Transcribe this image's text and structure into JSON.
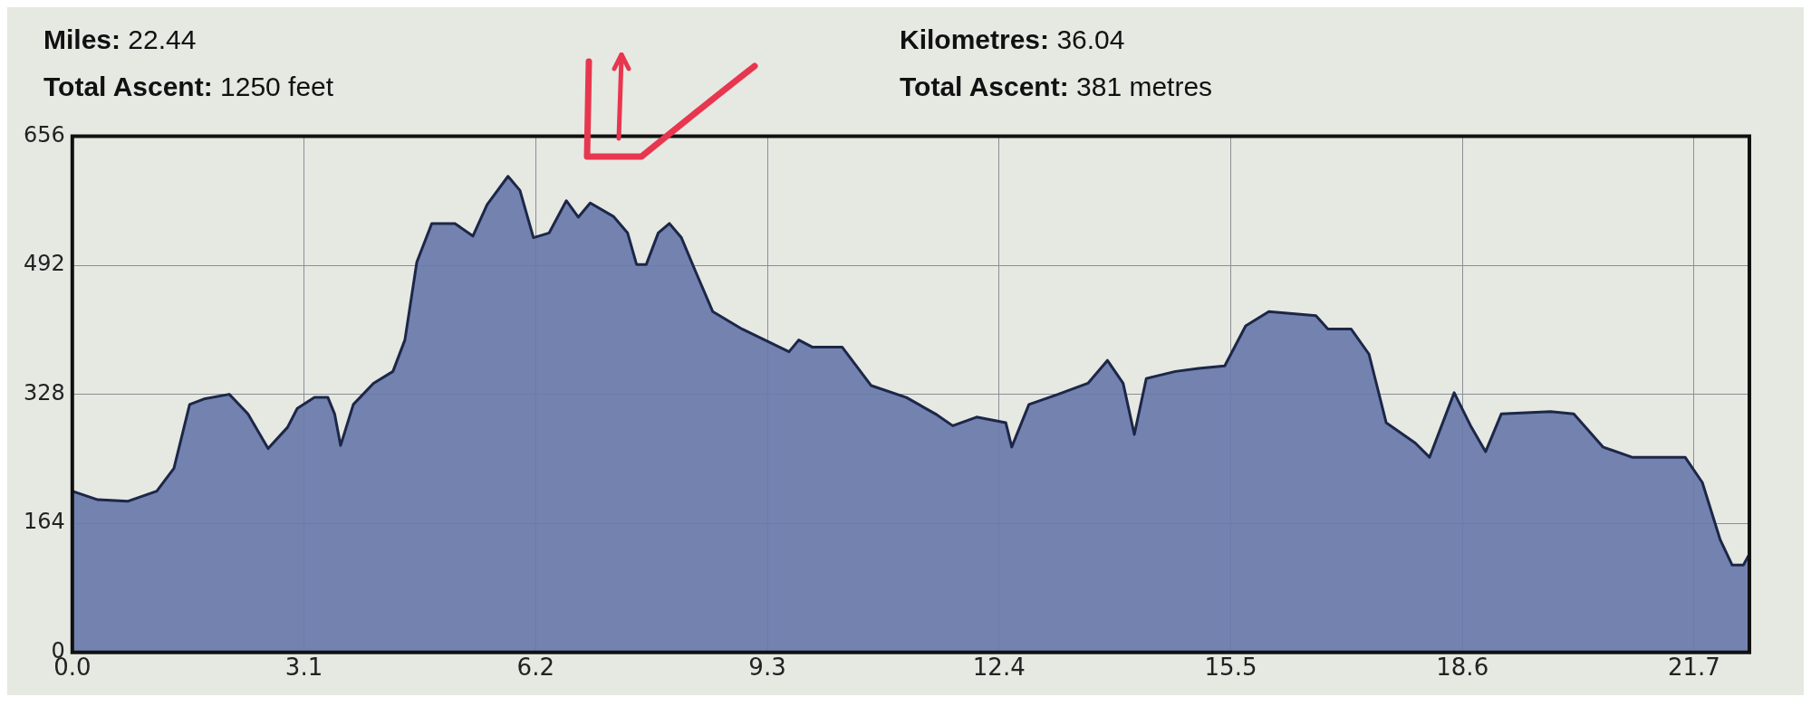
{
  "chart_data": {
    "type": "area",
    "annotations": [
      "Miles: 22.44",
      "Total Ascent: 1250 feet",
      "Kilometres: 36.04",
      "Total Ascent: 381 metres"
    ],
    "x": [
      0,
      0.34,
      0.74,
      1.13,
      1.36,
      1.57,
      1.76,
      2.1,
      2.35,
      2.62,
      2.88,
      3.01,
      3.24,
      3.42,
      3.51,
      3.59,
      3.76,
      4.03,
      4.29,
      4.45,
      4.61,
      4.81,
      5.12,
      5.36,
      5.55,
      5.83,
      5.99,
      6.17,
      6.38,
      6.61,
      6.77,
      6.93,
      7.24,
      7.43,
      7.55,
      7.68,
      7.84,
      7.99,
      8.15,
      8.34,
      8.57,
      8.96,
      9.59,
      9.72,
      9.9,
      10.3,
      10.69,
      11.16,
      11.55,
      11.78,
      12.1,
      12.49,
      12.57,
      12.8,
      13.19,
      13.59,
      13.85,
      14.06,
      14.21,
      14.37,
      14.76,
      15.07,
      15.42,
      15.7,
      16.01,
      16.64,
      16.8,
      17.11,
      17.35,
      17.58,
      17.97,
      18.16,
      18.49,
      18.71,
      18.91,
      19.12,
      19.78,
      20.09,
      20.48,
      20.87,
      21.58,
      21.81,
      22.05,
      22.21,
      22.36,
      22.44
    ],
    "series": [
      {
        "color": "#6a7aab",
        "values": [
          205,
          194,
          192,
          205,
          234,
          315,
          322,
          328,
          303,
          259,
          286,
          310,
          324,
          324,
          303,
          263,
          315,
          342,
          357,
          397,
          496,
          545,
          545,
          529,
          569,
          605,
          587,
          527,
          533,
          574,
          553,
          571,
          554,
          533,
          493,
          493,
          533,
          545,
          527,
          484,
          433,
          411,
          382,
          397,
          388,
          388,
          339,
          324,
          303,
          288,
          299,
          292,
          261,
          315,
          328,
          342,
          371,
          342,
          277,
          348,
          357,
          361,
          364,
          415,
          433,
          428,
          411,
          411,
          379,
          292,
          266,
          248,
          330,
          288,
          255,
          303,
          306,
          303,
          261,
          248,
          248,
          216,
          143,
          111,
          111,
          125
        ]
      }
    ],
    "xlim": [
      0,
      22.44
    ],
    "xticks": [
      {
        "value": 0,
        "label": "0.0"
      },
      3.1,
      6.2,
      9.3,
      12.4,
      15.5,
      18.6,
      21.7
    ],
    "ylim": [
      0,
      656
    ],
    "yticks": [
      0,
      164,
      328,
      492,
      656
    ],
    "grid": true,
    "legend": false,
    "marker": "none",
    "line_style": "solid"
  }
}
